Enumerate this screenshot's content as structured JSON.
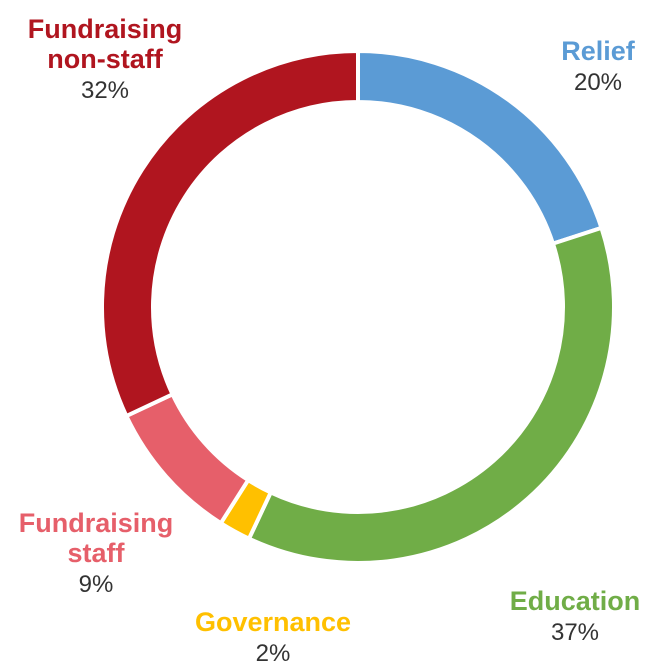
{
  "chart_data": {
    "type": "pie",
    "style": "donut",
    "title": "",
    "legend": "none",
    "slices": [
      {
        "label": "Relief",
        "value": 20,
        "display": "20%",
        "color": "#5b9bd5"
      },
      {
        "label": "Education",
        "value": 37,
        "display": "37%",
        "color": "#70ad47"
      },
      {
        "label": "Governance",
        "value": 2,
        "display": "2%",
        "color": "#ffc000"
      },
      {
        "label": "Fundraising staff",
        "label_lines": [
          "Fundraising",
          "staff"
        ],
        "value": 9,
        "display": "9%",
        "color": "#e65f6a"
      },
      {
        "label": "Fundraising non-staff",
        "label_lines": [
          "Fundraising",
          "non-staff"
        ],
        "value": 32,
        "display": "32%",
        "color": "#b0151f"
      }
    ]
  }
}
